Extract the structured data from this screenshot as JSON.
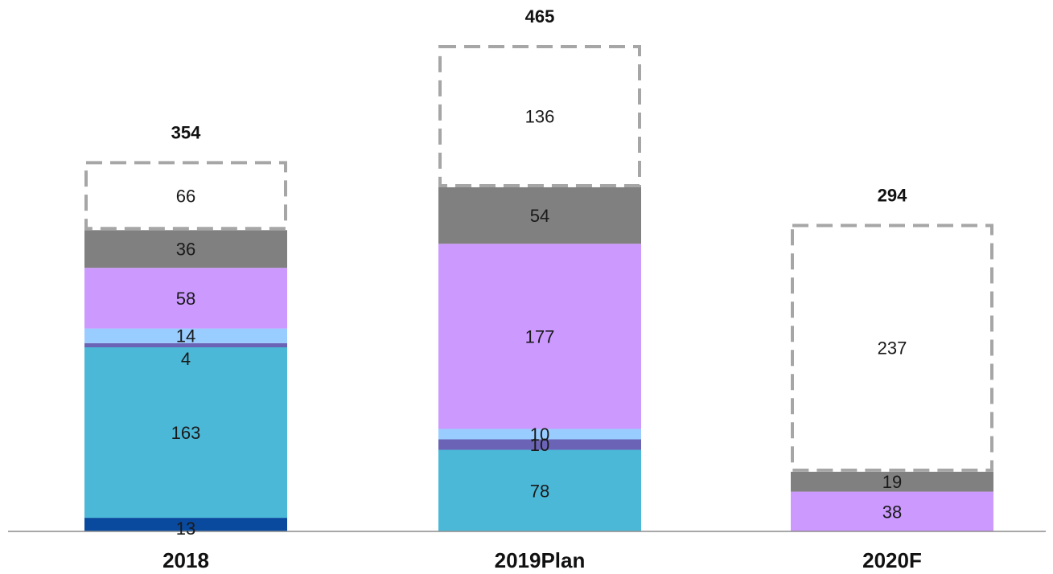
{
  "chart_data": {
    "type": "bar",
    "stacked": true,
    "categories": [
      "2018",
      "2019Plan",
      "2020F"
    ],
    "totals": [
      354,
      465,
      294
    ],
    "series": [
      {
        "values": [
          13,
          0,
          0
        ],
        "color": "#0a4a9e",
        "label_color": "#ffffff"
      },
      {
        "values": [
          163,
          78,
          0
        ],
        "color": "#4bb8d8",
        "label_color": "#1a1a1a"
      },
      {
        "values": [
          4,
          10,
          0
        ],
        "color": "#6b63b5",
        "label_color": "#1a1a1a"
      },
      {
        "values": [
          14,
          10,
          0
        ],
        "color": "#99ccff",
        "label_color": "#1a1a1a"
      },
      {
        "values": [
          58,
          177,
          38
        ],
        "color": "#cc99ff",
        "label_color": "#1a1a1a"
      },
      {
        "values": [
          36,
          54,
          19
        ],
        "color": "#808080",
        "label_color": "#1a1a1a"
      },
      {
        "values": [
          66,
          136,
          237
        ],
        "color": "#ffffff",
        "label_color": "#1a1a1a",
        "style": "dashed-outline",
        "outline_color": "#a6a6a6"
      }
    ],
    "ylim": [
      0,
      465
    ],
    "grid": false,
    "legend": "none",
    "title": "",
    "xlabel": "",
    "ylabel": ""
  }
}
